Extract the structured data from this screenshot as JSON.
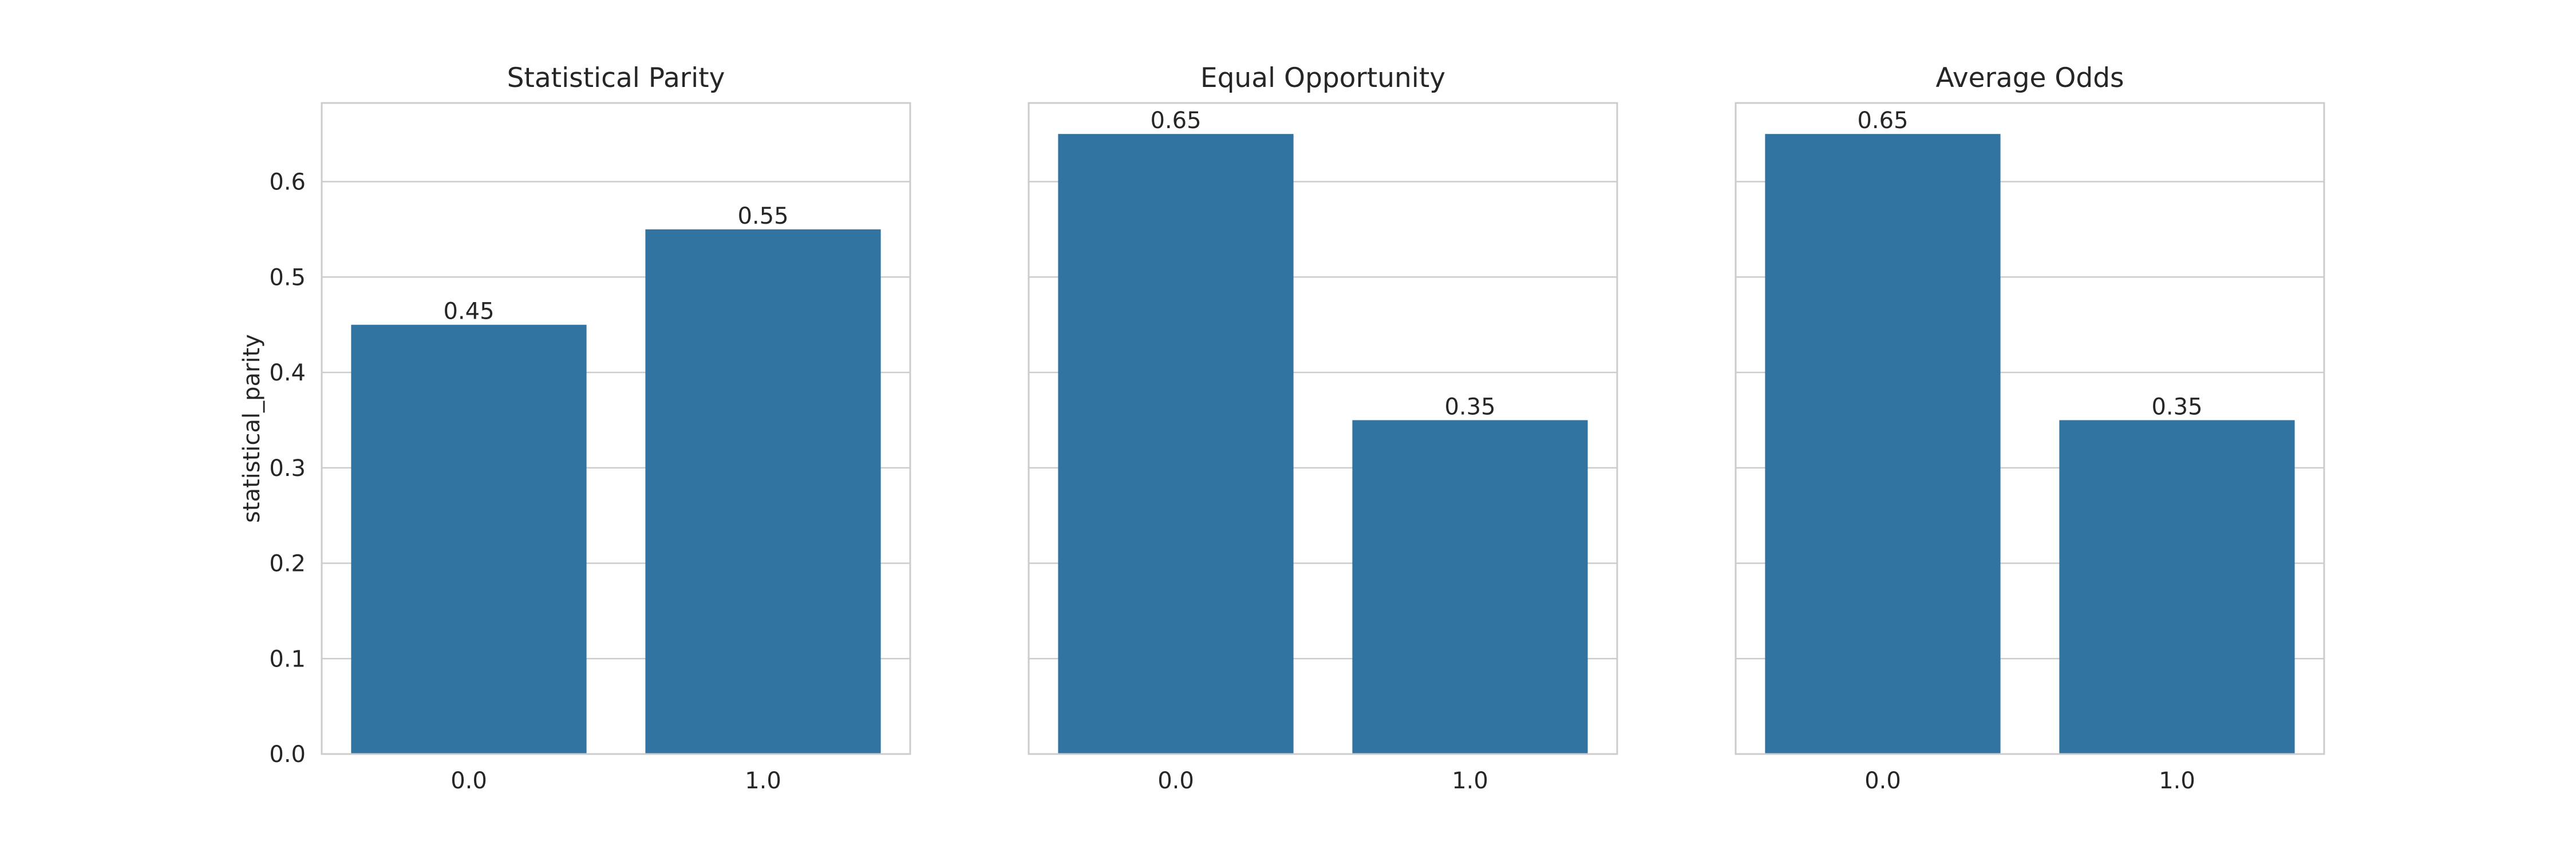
{
  "chart_data": [
    {
      "type": "bar",
      "title": "Statistical Parity",
      "xlabel": "",
      "ylabel": "statistical_parity",
      "categories": [
        "0.0",
        "1.0"
      ],
      "values": [
        0.45,
        0.55
      ],
      "data_labels": [
        "0.45",
        "0.55"
      ],
      "ylim": [
        0,
        0.6825
      ],
      "yticks": [
        "0.0",
        "0.1",
        "0.2",
        "0.3",
        "0.4",
        "0.5",
        "0.6"
      ],
      "grid": true,
      "bar_color": "#3274a1"
    },
    {
      "type": "bar",
      "title": "Equal Opportunity",
      "xlabel": "",
      "ylabel": "",
      "categories": [
        "0.0",
        "1.0"
      ],
      "values": [
        0.65,
        0.35
      ],
      "data_labels": [
        "0.65",
        "0.35"
      ],
      "ylim": [
        0,
        0.6825
      ],
      "yticks": [],
      "grid": true,
      "bar_color": "#3274a1"
    },
    {
      "type": "bar",
      "title": "Average Odds",
      "xlabel": "",
      "ylabel": "",
      "categories": [
        "0.0",
        "1.0"
      ],
      "values": [
        0.65,
        0.35
      ],
      "data_labels": [
        "0.65",
        "0.35"
      ],
      "ylim": [
        0,
        0.6825
      ],
      "yticks": [],
      "grid": true,
      "bar_color": "#3274a1"
    }
  ]
}
